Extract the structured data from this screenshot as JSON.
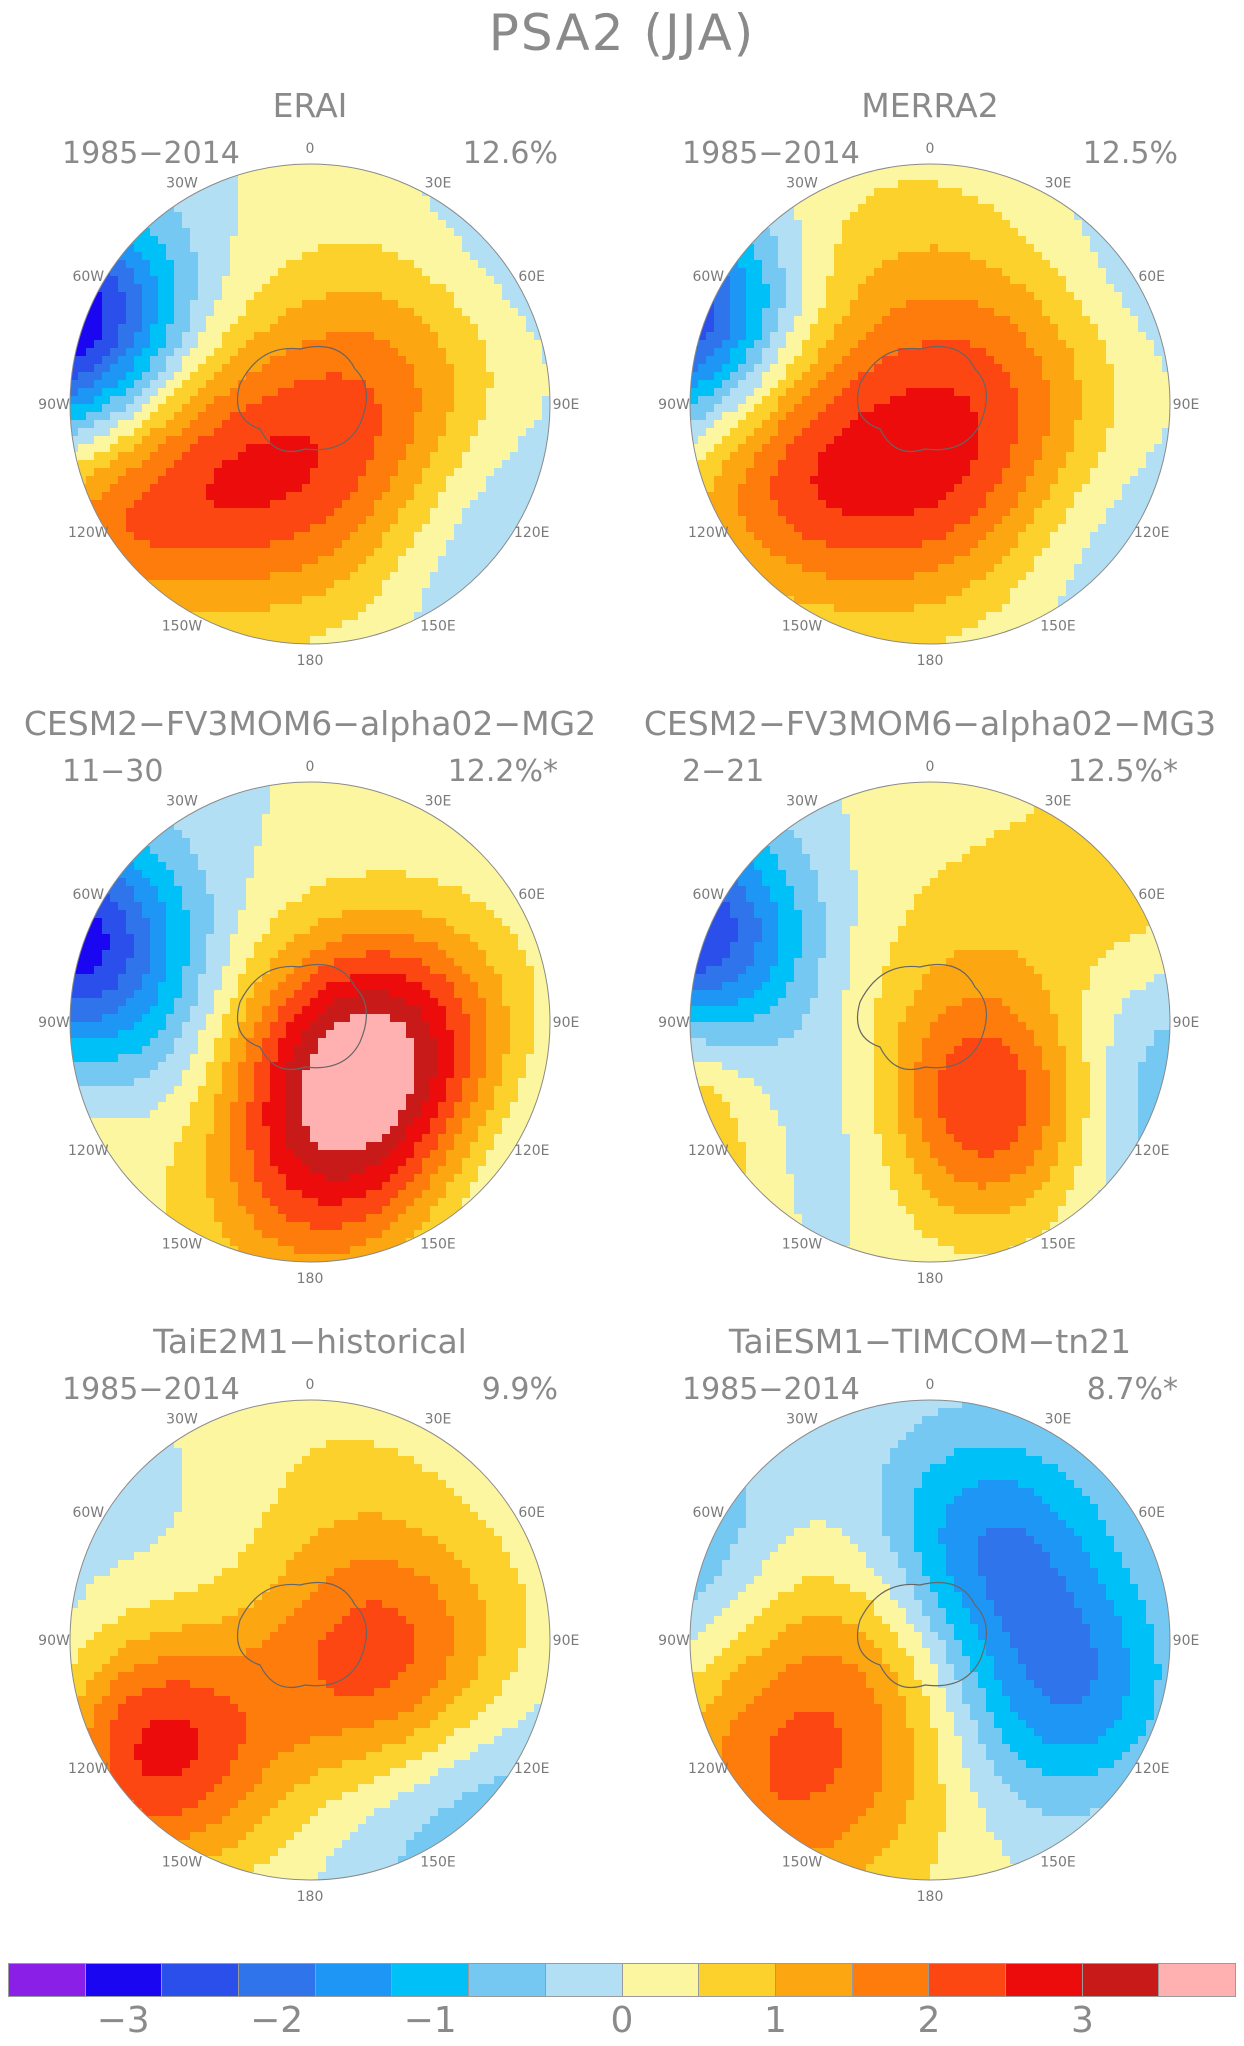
{
  "title": "PSA2 (JJA)",
  "panels": [
    {
      "title": "ERAI",
      "period": "1985−2014",
      "variance": "12.6%",
      "centers": [
        [
          -1.0,
          -0.35,
          -3.4,
          0.11
        ],
        [
          -1.0,
          0.15,
          -0.9,
          0.13
        ],
        [
          -0.55,
          0.3,
          2.0,
          0.15
        ],
        [
          0.35,
          -0.1,
          1.6,
          0.18
        ],
        [
          0.15,
          0.4,
          1.8,
          0.16
        ],
        [
          0.55,
          0.45,
          -1.4,
          0.18
        ],
        [
          0.85,
          -0.6,
          -0.6,
          0.15
        ],
        [
          -1.0,
          0.5,
          1.2,
          0.1
        ]
      ]
    },
    {
      "title": "MERRA2",
      "period": "1985−2014",
      "variance": "12.5%",
      "centers": [
        [
          -1.05,
          -0.35,
          -3.3,
          0.11
        ],
        [
          -0.55,
          0.3,
          1.9,
          0.15
        ],
        [
          0.35,
          -0.05,
          1.6,
          0.2
        ],
        [
          0.15,
          0.4,
          1.8,
          0.16
        ],
        [
          0.55,
          0.45,
          -1.3,
          0.18
        ],
        [
          0.9,
          -0.55,
          -0.7,
          0.15
        ],
        [
          -0.2,
          -0.5,
          0.6,
          0.2
        ]
      ]
    },
    {
      "title": "CESM2−FV3MOM6−alpha02−MG2",
      "period": "11−30",
      "variance": "12.2%*",
      "centers": [
        [
          -1.0,
          -0.35,
          -3.2,
          0.11
        ],
        [
          -0.6,
          0.2,
          -0.8,
          0.12
        ],
        [
          0.35,
          0.1,
          2.9,
          0.14
        ],
        [
          -0.35,
          0.55,
          -0.4,
          0.1
        ],
        [
          0.05,
          0.5,
          3.0,
          0.18
        ],
        [
          0.7,
          0.5,
          -1.1,
          0.18
        ],
        [
          -1.0,
          0.5,
          0.6,
          0.1
        ]
      ]
    },
    {
      "title": "CESM2−FV3MOM6−alpha02−MG3",
      "period": "2−21",
      "variance": "12.5%*",
      "centers": [
        [
          -1.0,
          -0.35,
          -3.2,
          0.11
        ],
        [
          -0.4,
          0.4,
          -1.0,
          0.12
        ],
        [
          0.25,
          0.35,
          2.9,
          0.13
        ],
        [
          -1.1,
          0.4,
          1.5,
          0.16
        ],
        [
          0.85,
          0.3,
          -1.3,
          0.18
        ],
        [
          0.85,
          -0.6,
          0.8,
          0.15
        ],
        [
          0.1,
          -0.3,
          0.5,
          0.2
        ]
      ]
    },
    {
      "title": "TaiE2M1−historical",
      "period": "1985−2014",
      "variance": "9.9%",
      "centers": [
        [
          -0.7,
          0.45,
          3.2,
          0.14
        ],
        [
          0.3,
          0.1,
          2.4,
          0.15
        ],
        [
          -1.3,
          0.4,
          -1.6,
          0.2
        ],
        [
          0.0,
          -0.6,
          0.7,
          0.18
        ],
        [
          0.65,
          0.7,
          -1.1,
          0.18
        ],
        [
          -0.3,
          -0.4,
          -0.5,
          0.2
        ]
      ]
    },
    {
      "title": "TaiESM1−TIMCOM−tn21",
      "period": "1985−2014",
      "variance": "8.7%*",
      "centers": [
        [
          -0.6,
          0.6,
          1.8,
          0.18
        ],
        [
          -0.2,
          -0.05,
          1.5,
          0.18
        ],
        [
          0.6,
          0.25,
          -2.3,
          0.13
        ],
        [
          0.2,
          -0.35,
          -2.5,
          0.14
        ],
        [
          -1.1,
          -0.4,
          -1.2,
          0.15
        ],
        [
          0.9,
          0.45,
          0.6,
          0.2
        ]
      ]
    }
  ],
  "lon_labels": [
    "0",
    "30E",
    "60E",
    "90E",
    "120E",
    "150E",
    "180",
    "150W",
    "120W",
    "90W",
    "60W",
    "30W"
  ],
  "colorbar": {
    "colors": [
      "#8a20e8",
      "#1a06f0",
      "#2a4fea",
      "#2f74ea",
      "#1e96f5",
      "#00c1f7",
      "#75c8f2",
      "#b2dff4",
      "#fdf6a1",
      "#fdd12b",
      "#fca612",
      "#fd7c0c",
      "#fc4712",
      "#ec0c0c",
      "#c91a1a",
      "#ffb0b0"
    ],
    "labels": [
      "−3",
      "−2",
      "−1",
      "0",
      "1",
      "2",
      "3"
    ],
    "levels": [
      -3.5,
      -3.0,
      -2.5,
      -2.0,
      -1.5,
      -1.0,
      -0.5,
      0,
      0.5,
      1.0,
      1.5,
      2.0,
      2.5,
      3.0,
      3.5
    ]
  }
}
